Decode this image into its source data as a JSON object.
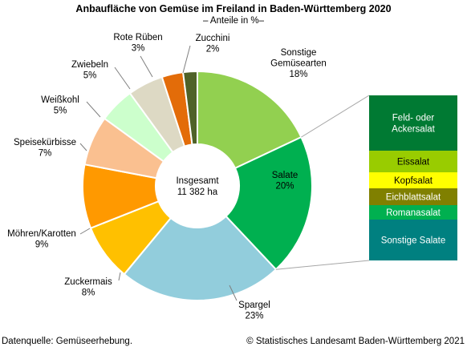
{
  "chart_data": {
    "type": "pie",
    "title": "Anbaufläche von Gemüse im Freiland in Baden-Württemberg 2020",
    "subtitle": "– Anteile in %–",
    "center_label": {
      "line1": "Insgesamt",
      "line2": "11 382 ha"
    },
    "slices": [
      {
        "name": "Sonstige Gemüsearten",
        "label_lines": [
          "Sonstige",
          "Gemüsearten"
        ],
        "pct_label": "18%",
        "value": 18,
        "color": "#92d050"
      },
      {
        "name": "Salate",
        "label_lines": [
          "Salate"
        ],
        "pct_label": "20%",
        "value": 20,
        "color": "#00b050"
      },
      {
        "name": "Spargel",
        "label_lines": [
          "Spargel"
        ],
        "pct_label": "23%",
        "value": 23,
        "color": "#92cddc"
      },
      {
        "name": "Zuckermais",
        "label_lines": [
          "Zuckermais"
        ],
        "pct_label": "8%",
        "value": 8,
        "color": "#ffc000"
      },
      {
        "name": "Möhren/Karotten",
        "label_lines": [
          "Möhren/Karotten"
        ],
        "pct_label": "9%",
        "value": 9,
        "color": "#ff9900"
      },
      {
        "name": "Speisekürbisse",
        "label_lines": [
          "Speisekürbisse"
        ],
        "pct_label": "7%",
        "value": 7,
        "color": "#fac090"
      },
      {
        "name": "Weißkohl",
        "label_lines": [
          "Weißkohl"
        ],
        "pct_label": "5%",
        "value": 5,
        "color": "#ccffcc"
      },
      {
        "name": "Zwiebeln",
        "label_lines": [
          "Zwiebeln"
        ],
        "pct_label": "5%",
        "value": 5,
        "color": "#ddd9c4"
      },
      {
        "name": "Rote Rüben",
        "label_lines": [
          "Rote Rüben"
        ],
        "pct_label": "3%",
        "value": 3,
        "color": "#e36c09"
      },
      {
        "name": "Zucchini",
        "label_lines": [
          "Zucchini"
        ],
        "pct_label": "2%",
        "value": 2,
        "color": "#4f6228"
      }
    ],
    "salate_breakdown": [
      {
        "label": "Feld- oder Ackersalat",
        "label_lines": [
          "Feld- oder",
          "Ackersalat"
        ],
        "color": "#007a33",
        "text_color": "#ffffff"
      },
      {
        "label": "Eissalat",
        "label_lines": [
          "Eissalat"
        ],
        "color": "#99cc00",
        "text_color": "#000000"
      },
      {
        "label": "Kopfsalat",
        "label_lines": [
          "Kopfsalat"
        ],
        "color": "#ffff00",
        "text_color": "#000000"
      },
      {
        "label": "Eichblattsalat",
        "label_lines": [
          "Eichblattsalat"
        ],
        "color": "#808000",
        "text_color": "#ffffff"
      },
      {
        "label": "Romanasalat",
        "label_lines": [
          "Romanasalat"
        ],
        "color": "#00b050",
        "text_color": "#ffffff"
      },
      {
        "label": "Sonstige Salate",
        "label_lines": [
          "Sonstige Salate"
        ],
        "color": "#008080",
        "text_color": "#ffffff"
      }
    ]
  },
  "footer": {
    "source": "Datenquelle: Gemüseerhebung.",
    "copyright": "© Statistisches Landesamt Baden-Württemberg 2021"
  }
}
